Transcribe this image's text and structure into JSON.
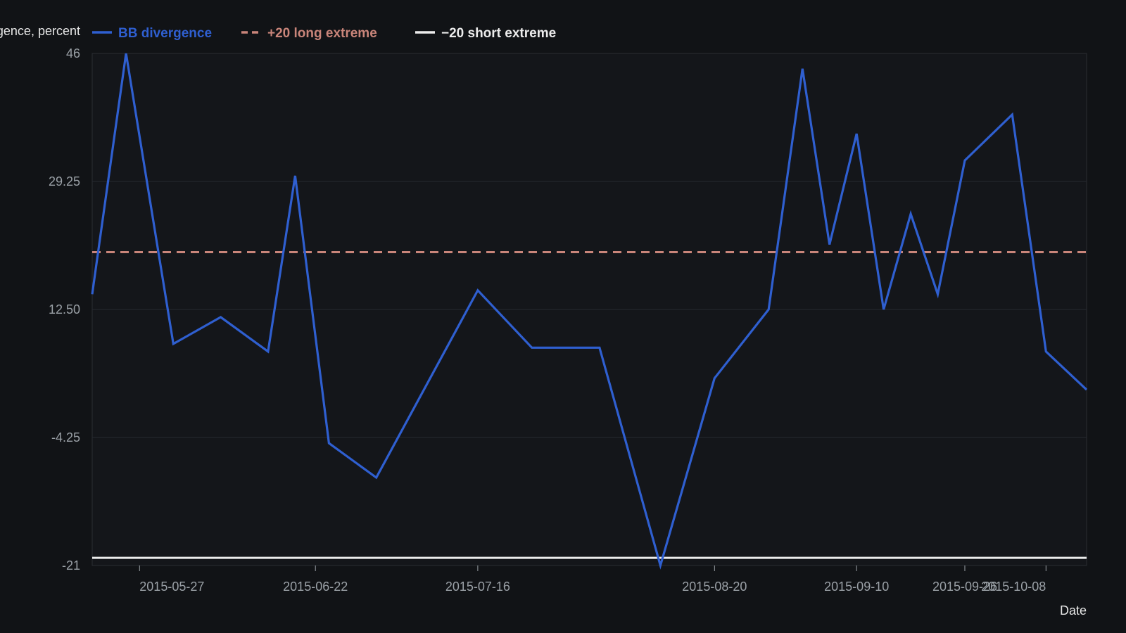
{
  "chart_data": {
    "type": "line",
    "title": "",
    "xlabel": "Date",
    "ylabel": "BB divergence, percent",
    "ylim": [
      -21,
      46
    ],
    "yticks": [
      "46",
      "29.25",
      "12.50",
      "-4.25",
      "-21"
    ],
    "xlim": [
      "2015-05-20",
      "2015-10-14"
    ],
    "xticks": [
      "2015-05-27",
      "2015-06-22",
      "2015-07-16",
      "2015-08-20",
      "2015-09-10",
      "2015-09-26",
      "2015-10-08"
    ],
    "grid": true,
    "legend_position": "top",
    "series": [
      {
        "name": "BB divergence",
        "color": "#2f5fd0",
        "style": "solid",
        "x": [
          "2015-05-20",
          "2015-05-25",
          "2015-06-01",
          "2015-06-08",
          "2015-06-15",
          "2015-06-19",
          "2015-06-24",
          "2015-07-01",
          "2015-07-16",
          "2015-07-24",
          "2015-08-03",
          "2015-08-12",
          "2015-08-20",
          "2015-08-28",
          "2015-09-02",
          "2015-09-06",
          "2015-09-10",
          "2015-09-14",
          "2015-09-18",
          "2015-09-22",
          "2015-09-26",
          "2015-10-03",
          "2015-10-08",
          "2015-10-14"
        ],
        "values": [
          14.5,
          46,
          8,
          11.5,
          7,
          30,
          -5,
          -9.5,
          15,
          7.5,
          7.5,
          -21,
          3.5,
          12.5,
          44,
          21,
          35.5,
          12.5,
          25,
          14.5,
          32,
          38,
          7,
          2
        ]
      },
      {
        "name": "+20 long extreme",
        "color": "#c9857a",
        "style": "dashed",
        "x": [
          "2015-05-20",
          "2015-10-14"
        ],
        "values": [
          20,
          20
        ]
      },
      {
        "name": "−20 short extreme",
        "color": "#ececec",
        "style": "solid",
        "x": [
          "2015-05-20",
          "2015-10-14"
        ],
        "values": [
          -20,
          -20
        ]
      }
    ]
  }
}
